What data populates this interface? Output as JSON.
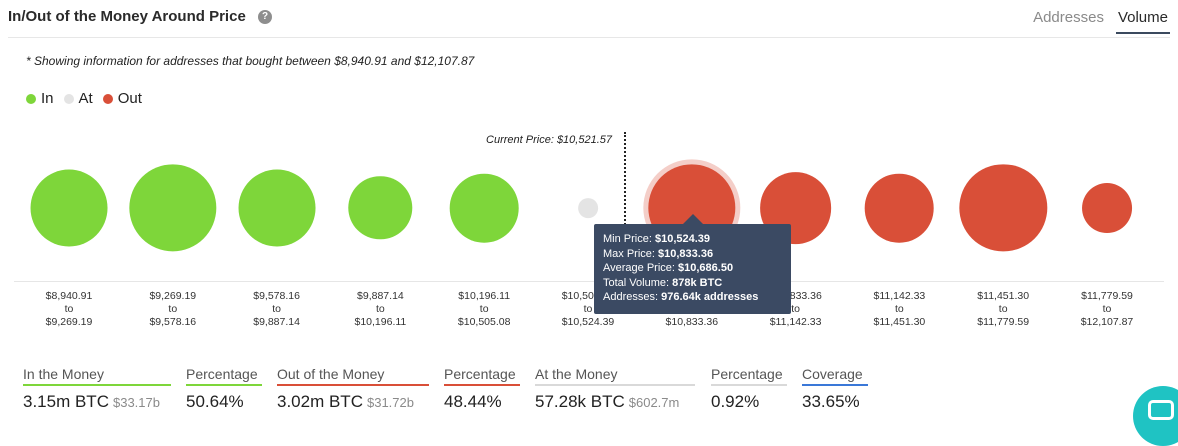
{
  "header": {
    "title": "In/Out of the Money Around Price",
    "help_icon_glyph": "?",
    "tabs": [
      {
        "label": "Addresses",
        "active": false
      },
      {
        "label": "Volume",
        "active": true
      }
    ]
  },
  "note": "* Showing information for addresses that bought between $8,940.91 and $12,107.87",
  "legend": [
    {
      "label": "In",
      "color": "#7ed63a"
    },
    {
      "label": "At",
      "color": "#e4e4e4"
    },
    {
      "label": "Out",
      "color": "#d94f38"
    }
  ],
  "current_price_label": "Current Price: $10,521.57",
  "chart_data": {
    "type": "scatter",
    "title": "",
    "current_price": "$10,521.57",
    "series": [
      {
        "name": "In",
        "color": "#7ed63a"
      },
      {
        "name": "At",
        "color": "#e4e4e4"
      },
      {
        "name": "Out",
        "color": "#d94f38"
      }
    ],
    "ranges": [
      {
        "from": "$8,940.91",
        "to_word": "to",
        "to": "$9,269.19",
        "status": "In",
        "size_rel": 0.74
      },
      {
        "from": "$9,269.19",
        "to_word": "to",
        "to": "$9,578.16",
        "status": "In",
        "size_rel": 0.84
      },
      {
        "from": "$9,578.16",
        "to_word": "to",
        "to": "$9,887.14",
        "status": "In",
        "size_rel": 0.74
      },
      {
        "from": "$9,887.14",
        "to_word": "to",
        "to": "$10,196.11",
        "status": "In",
        "size_rel": 0.61
      },
      {
        "from": "$10,196.11",
        "to_word": "to",
        "to": "$10,505.08",
        "status": "In",
        "size_rel": 0.66
      },
      {
        "from": "$10,505.08",
        "to_word": "to",
        "to": "$10,524.39",
        "status": "At",
        "size_rel": 0.19
      },
      {
        "from": "$10,524.39",
        "to_word": "to",
        "to": "$10,833.36",
        "status": "Out",
        "size_rel": 0.84
      },
      {
        "from": "$10,833.36",
        "to_word": "to",
        "to": "$11,142.33",
        "status": "Out",
        "size_rel": 0.69
      },
      {
        "from": "$11,142.33",
        "to_word": "to",
        "to": "$11,451.30",
        "status": "Out",
        "size_rel": 0.66
      },
      {
        "from": "$11,451.30",
        "to_word": "to",
        "to": "$11,779.59",
        "status": "Out",
        "size_rel": 0.84
      },
      {
        "from": "$11,779.59",
        "to_word": "to",
        "to": "$12,107.87",
        "status": "Out",
        "size_rel": 0.48
      }
    ],
    "highlighted_index": 6
  },
  "tooltip": {
    "rows": [
      {
        "label": "Min Price: ",
        "value": "$10,524.39"
      },
      {
        "label": "Max Price: ",
        "value": "$10,833.36"
      },
      {
        "label": "Average Price: ",
        "value": "$10,686.50"
      },
      {
        "label": "Total Volume: ",
        "value": "878k BTC"
      },
      {
        "label": "Addresses: ",
        "value": "976.64k addresses"
      }
    ]
  },
  "summary": [
    {
      "label": "In the Money",
      "underline": "#7ed63a",
      "value": "3.15m BTC",
      "sub": "$33.17b"
    },
    {
      "label": "Percentage",
      "underline": "#7ed63a",
      "value": "50.64%",
      "sub": ""
    },
    {
      "label": "Out of the Money",
      "underline": "#d94f38",
      "value": "3.02m BTC",
      "sub": "$31.72b"
    },
    {
      "label": "Percentage",
      "underline": "#d94f38",
      "value": "48.44%",
      "sub": ""
    },
    {
      "label": "At the Money",
      "underline": "#d9d9d9",
      "value": "57.28k BTC",
      "sub": "$602.7m"
    },
    {
      "label": "Percentage",
      "underline": "#d9d9d9",
      "value": "0.92%",
      "sub": ""
    },
    {
      "label": "Coverage",
      "underline": "#3a78d8",
      "value": "33.65%",
      "sub": ""
    }
  ]
}
